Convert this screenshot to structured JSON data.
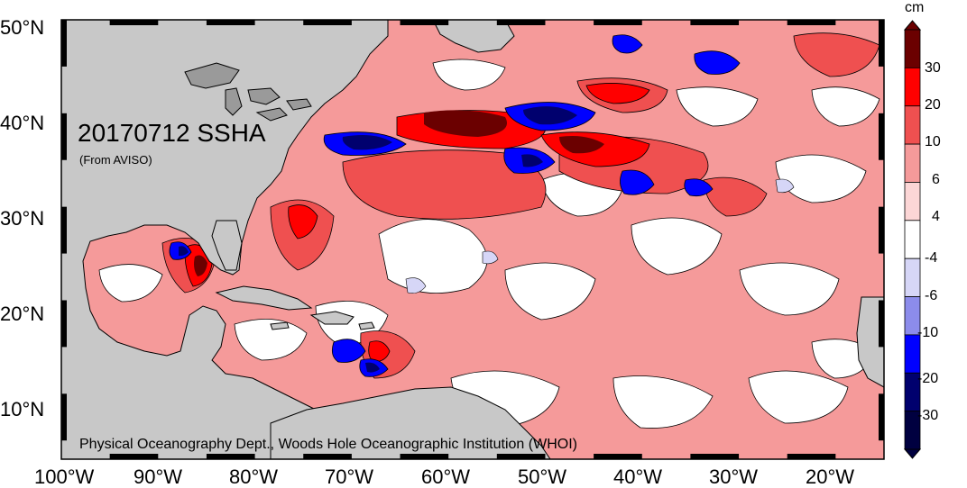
{
  "map": {
    "title": "20170712 SSHA",
    "subtitle": "(From AVISO)",
    "credit": "Physical Oceanography Dept., Woods Hole Oceanographic Institution (WHOI)",
    "lat_labels": [
      "50°N",
      "40°N",
      "30°N",
      "20°N",
      "10°N"
    ],
    "lon_labels": [
      "100°W",
      "90°W",
      "80°W",
      "70°W",
      "60°W",
      "50°W",
      "40°W",
      "30°W",
      "20°W"
    ],
    "lat_range": [
      4,
      51
    ],
    "lon_range": [
      -100,
      -15
    ],
    "land_color": "#c8c8c8",
    "ocean_neutral_color": "#ffffff"
  },
  "colorbar": {
    "unit": "cm",
    "tick_labels": [
      "30",
      "20",
      "10",
      "6",
      "4",
      "-4",
      "-6",
      "-10",
      "-20",
      "-30"
    ],
    "colors_top_to_bottom": [
      "#6b0000",
      "#ff0000",
      "#ef5050",
      "#f59a9a",
      "#fcd6d6",
      "#ffffff",
      "#d6d6f7",
      "#8c8ceb",
      "#0000ff",
      "#00006e",
      "#000040"
    ]
  }
}
